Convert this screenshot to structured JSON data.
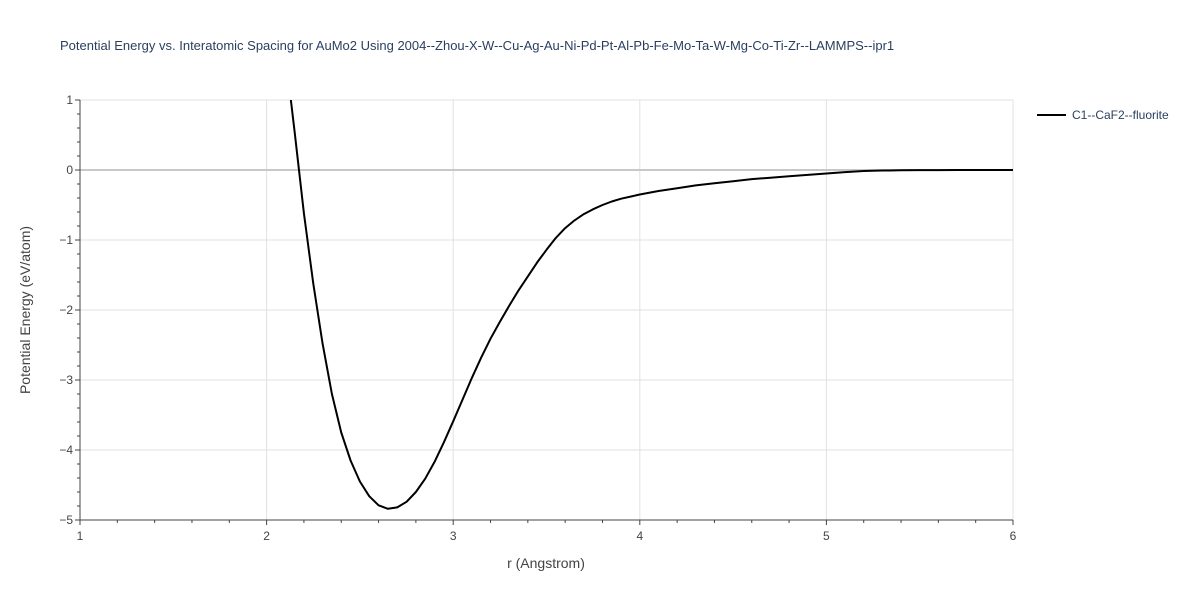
{
  "chart_data": {
    "type": "line",
    "title": "Potential Energy vs. Interatomic Spacing for AuMo2 Using 2004--Zhou-X-W--Cu-Ag-Au-Ni-Pd-Pt-Al-Pb-Fe-Mo-Ta-W-Mg-Co-Ti-Zr--LAMMPS--ipr1",
    "xlabel": "r (Angstrom)",
    "ylabel": "Potential Energy (eV/atom)",
    "xlim": [
      1,
      6
    ],
    "ylim": [
      -5,
      1
    ],
    "x_ticks": [
      1,
      2,
      3,
      4,
      5,
      6
    ],
    "x_tick_labels": [
      "1",
      "2",
      "3",
      "4",
      "5",
      "6"
    ],
    "y_ticks": [
      1,
      0,
      -1,
      -2,
      -3,
      -4,
      -5
    ],
    "y_tick_labels": [
      "1",
      "0",
      "−1",
      "−2",
      "−3",
      "−4",
      "−5"
    ],
    "grid": true,
    "legend_position": "top-right",
    "series": [
      {
        "name": "C1--CaF2--fluorite",
        "color": "#000000",
        "x": [
          2.13,
          2.15,
          2.2,
          2.25,
          2.3,
          2.35,
          2.4,
          2.45,
          2.5,
          2.55,
          2.6,
          2.65,
          2.7,
          2.75,
          2.8,
          2.85,
          2.9,
          2.95,
          3.0,
          3.05,
          3.1,
          3.15,
          3.2,
          3.25,
          3.3,
          3.35,
          3.4,
          3.45,
          3.5,
          3.55,
          3.6,
          3.65,
          3.7,
          3.75,
          3.8,
          3.85,
          3.9,
          3.95,
          4.0,
          4.1,
          4.2,
          4.3,
          4.4,
          4.5,
          4.6,
          4.7,
          4.8,
          4.9,
          5.0,
          5.1,
          5.2,
          5.3,
          5.4,
          5.5,
          5.6,
          5.7,
          5.8,
          5.9,
          6.0
        ],
        "y": [
          1.0,
          0.55,
          -0.62,
          -1.62,
          -2.48,
          -3.2,
          -3.75,
          -4.15,
          -4.45,
          -4.66,
          -4.79,
          -4.84,
          -4.82,
          -4.74,
          -4.6,
          -4.41,
          -4.17,
          -3.89,
          -3.59,
          -3.28,
          -2.97,
          -2.68,
          -2.41,
          -2.17,
          -1.94,
          -1.72,
          -1.52,
          -1.32,
          -1.14,
          -0.97,
          -0.83,
          -0.72,
          -0.63,
          -0.56,
          -0.5,
          -0.45,
          -0.41,
          -0.38,
          -0.35,
          -0.3,
          -0.26,
          -0.22,
          -0.19,
          -0.16,
          -0.13,
          -0.11,
          -0.09,
          -0.07,
          -0.05,
          -0.03,
          -0.015,
          -0.008,
          -0.004,
          -0.002,
          -0.001,
          0.0,
          0.0,
          0.0,
          0.0
        ]
      }
    ]
  }
}
